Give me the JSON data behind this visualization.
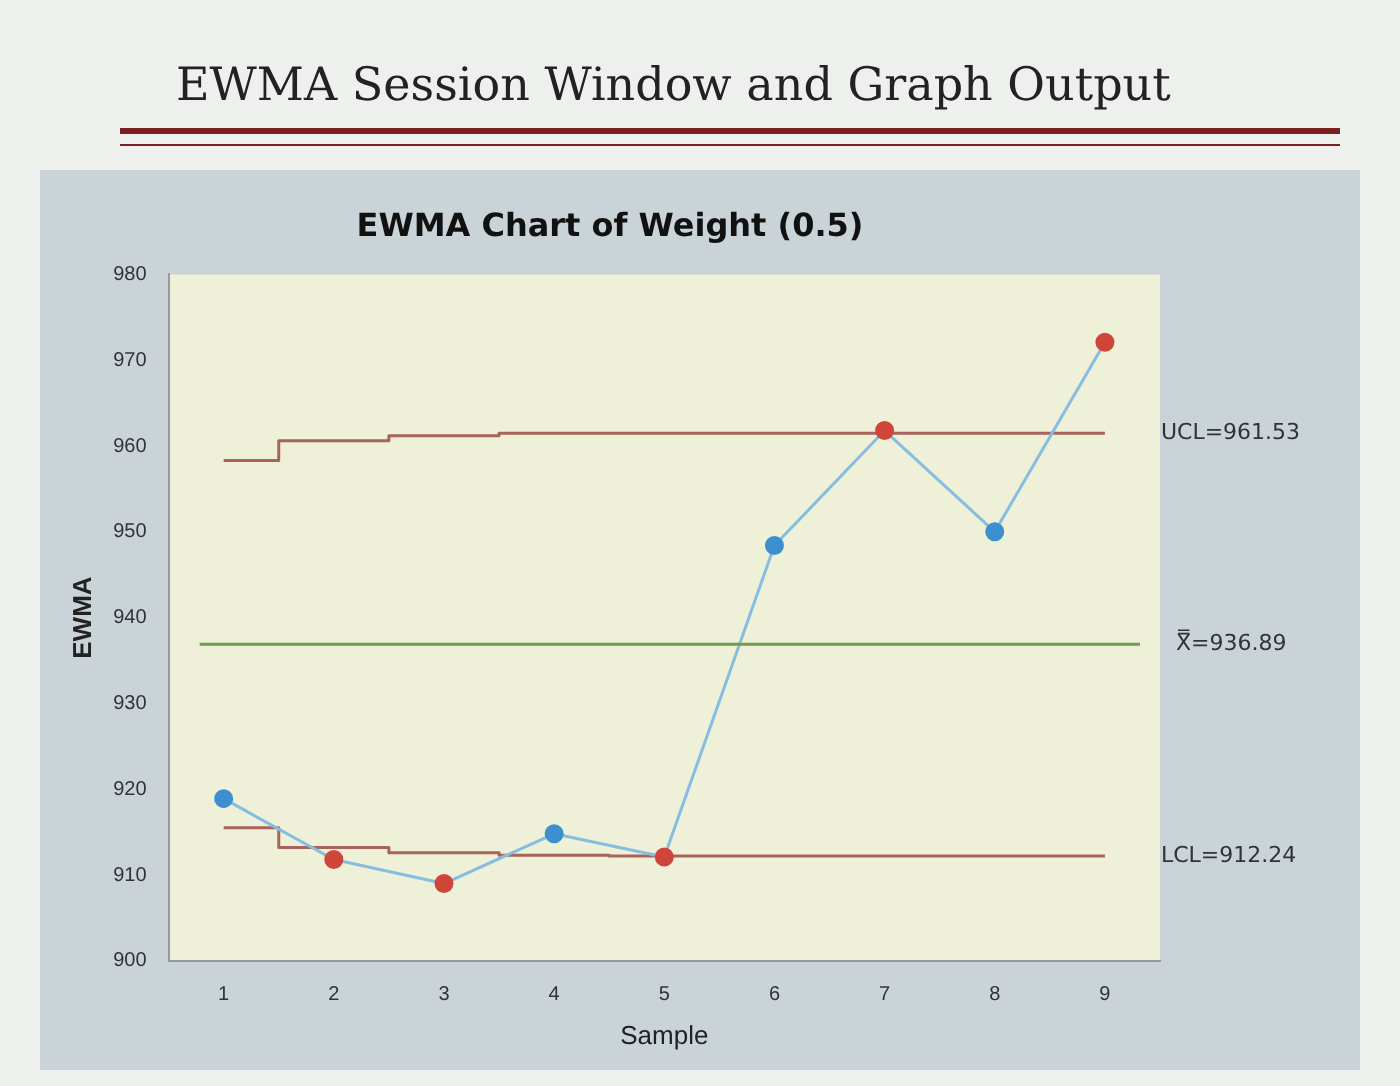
{
  "chart_data": {
    "type": "line",
    "title": "EWMA Chart of Weight (0.5)",
    "xlabel": "Sample",
    "ylabel": "EWMA",
    "annotations": [
      "EWMA Session Window and Graph Output"
    ],
    "categories": [
      "1",
      "2",
      "3",
      "4",
      "5",
      "6",
      "7",
      "8",
      "9"
    ],
    "series": [
      {
        "type": "step",
        "name": "UCL=961.53",
        "marker": "none",
        "color": "#a8645a",
        "values": [
          958.3,
          960.6,
          961.2,
          961.5,
          961.5,
          961.5,
          961.5,
          961.5,
          961.5
        ]
      },
      {
        "type": "step",
        "name": "LCL=912.24",
        "marker": "none",
        "color": "#a8645a",
        "values": [
          915.5,
          913.2,
          912.6,
          912.3,
          912.2,
          912.2,
          912.2,
          912.2,
          912.2
        ]
      },
      {
        "color": "#86bde0",
        "values": [
          918.9,
          911.8,
          909.0,
          914.8,
          912.1,
          948.4,
          961.8,
          950.0,
          972.1
        ],
        "colors": [
          "#3d8fcf",
          "#d0453a",
          "#d0453a",
          "#3d8fcf",
          "#d0453a",
          "#3d8fcf",
          "#d0453a",
          "#3d8fcf",
          "#d0453a"
        ]
      }
    ],
    "ref_lines": [
      {
        "axis": "y",
        "value": 936.89,
        "label": "X̿=936.89",
        "color": "#6f9d52"
      }
    ],
    "ylim": [
      900,
      980
    ],
    "yticks": [
      900,
      910,
      920,
      930,
      940,
      950,
      960,
      970,
      980
    ],
    "grid": false,
    "legend": false,
    "marker": "circle",
    "line_style": "solid"
  }
}
